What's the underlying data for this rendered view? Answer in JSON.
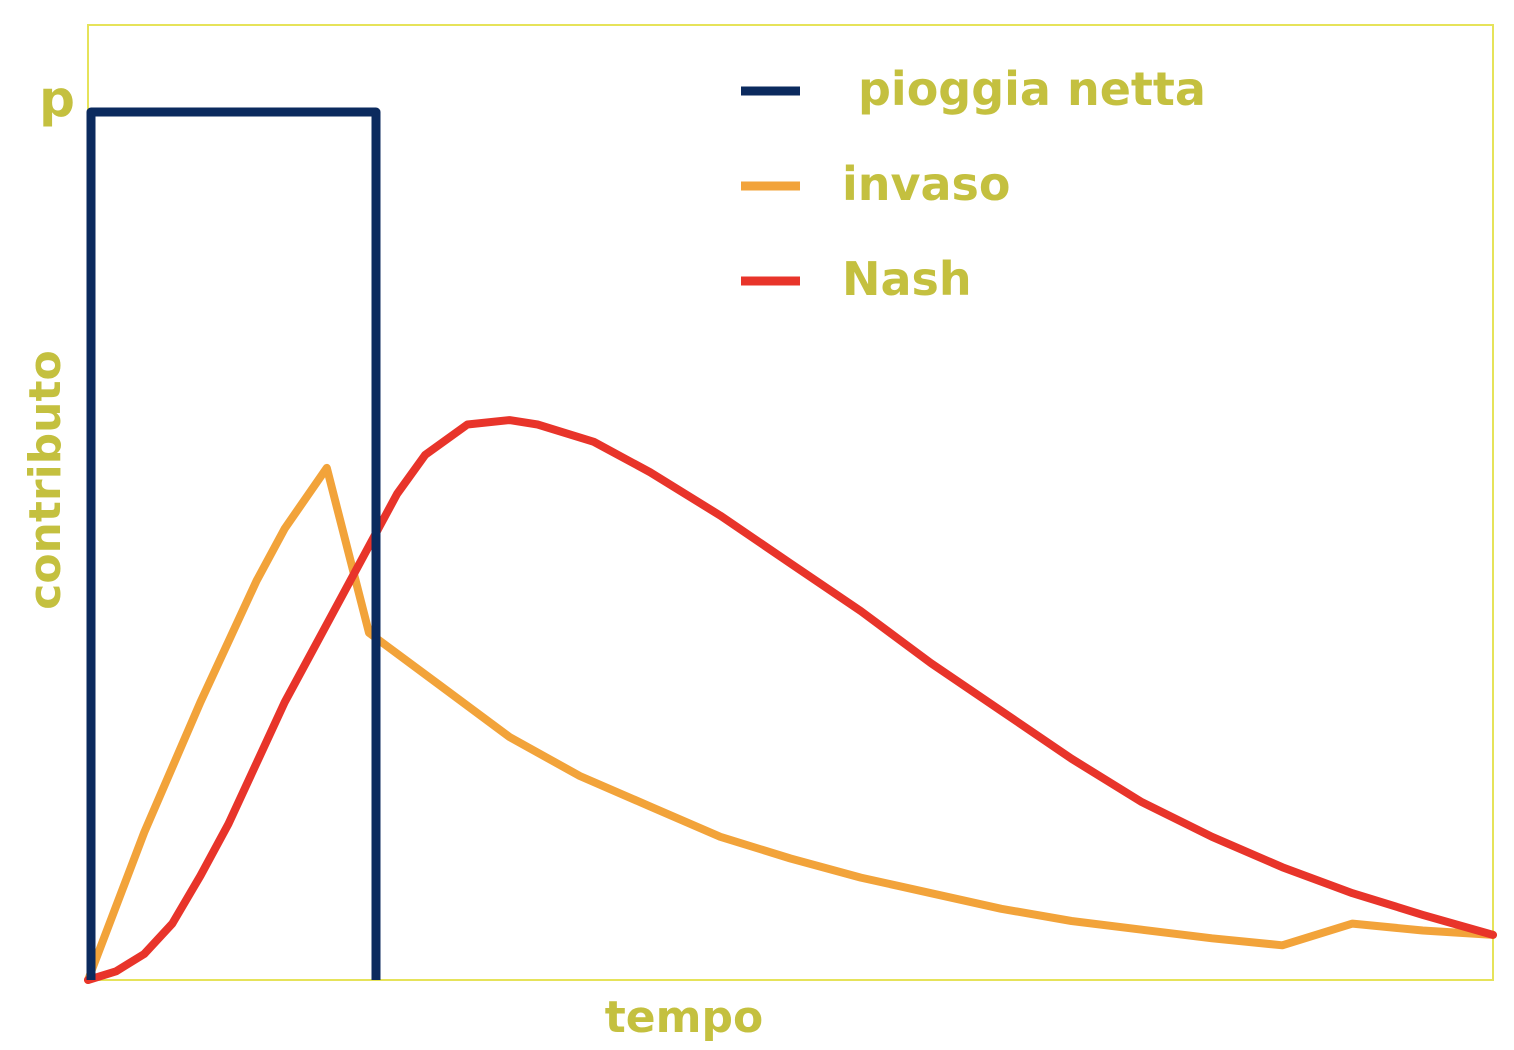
{
  "chart_data": {
    "type": "line",
    "title": "",
    "xlabel": "tempo",
    "ylabel": "contributo",
    "y_tick_labels": [
      "p"
    ],
    "xlim": [
      0,
      10
    ],
    "ylim": [
      0,
      1.1
    ],
    "grid": false,
    "legend_position": "top-right",
    "colors": {
      "axis_frame": "#e6e35a",
      "text": "#c4c03f"
    },
    "series": [
      {
        "name": "pioggia netta",
        "color": "#0b2a5e",
        "x": [
          0,
          0,
          2,
          2
        ],
        "y": [
          0,
          1,
          1,
          0
        ]
      },
      {
        "name": "invaso",
        "color": "#f2a33a",
        "x": [
          0,
          0.4,
          0.8,
          1.2,
          1.4,
          1.7,
          2.0,
          2.5,
          3.0,
          3.5,
          4.0,
          4.5,
          5.0,
          5.5,
          6.0,
          6.5,
          7.0,
          7.5,
          8.0,
          8.5,
          9.0,
          9.5,
          10.0
        ],
        "y": [
          0,
          0.17,
          0.32,
          0.46,
          0.52,
          0.59,
          0.4,
          0.34,
          0.28,
          0.235,
          0.2,
          0.165,
          0.14,
          0.118,
          0.1,
          0.082,
          0.068,
          0.058,
          0.048,
          0.04,
          0.065,
          0.057,
          0.052
        ]
      },
      {
        "name": "Nash",
        "color": "#e8342a",
        "x": [
          0,
          0.2,
          0.4,
          0.6,
          0.8,
          1.0,
          1.2,
          1.4,
          1.6,
          1.8,
          2.0,
          2.2,
          2.4,
          2.7,
          3.0,
          3.2,
          3.6,
          4.0,
          4.5,
          5.0,
          5.5,
          6.0,
          6.5,
          7.0,
          7.5,
          8.0,
          8.5,
          9.0,
          9.5,
          10.0
        ],
        "y": [
          0,
          0.01,
          0.03,
          0.065,
          0.12,
          0.18,
          0.25,
          0.32,
          0.38,
          0.44,
          0.5,
          0.56,
          0.605,
          0.64,
          0.645,
          0.64,
          0.62,
          0.585,
          0.535,
          0.48,
          0.425,
          0.365,
          0.31,
          0.255,
          0.205,
          0.165,
          0.13,
          0.1,
          0.075,
          0.052
        ]
      }
    ]
  }
}
